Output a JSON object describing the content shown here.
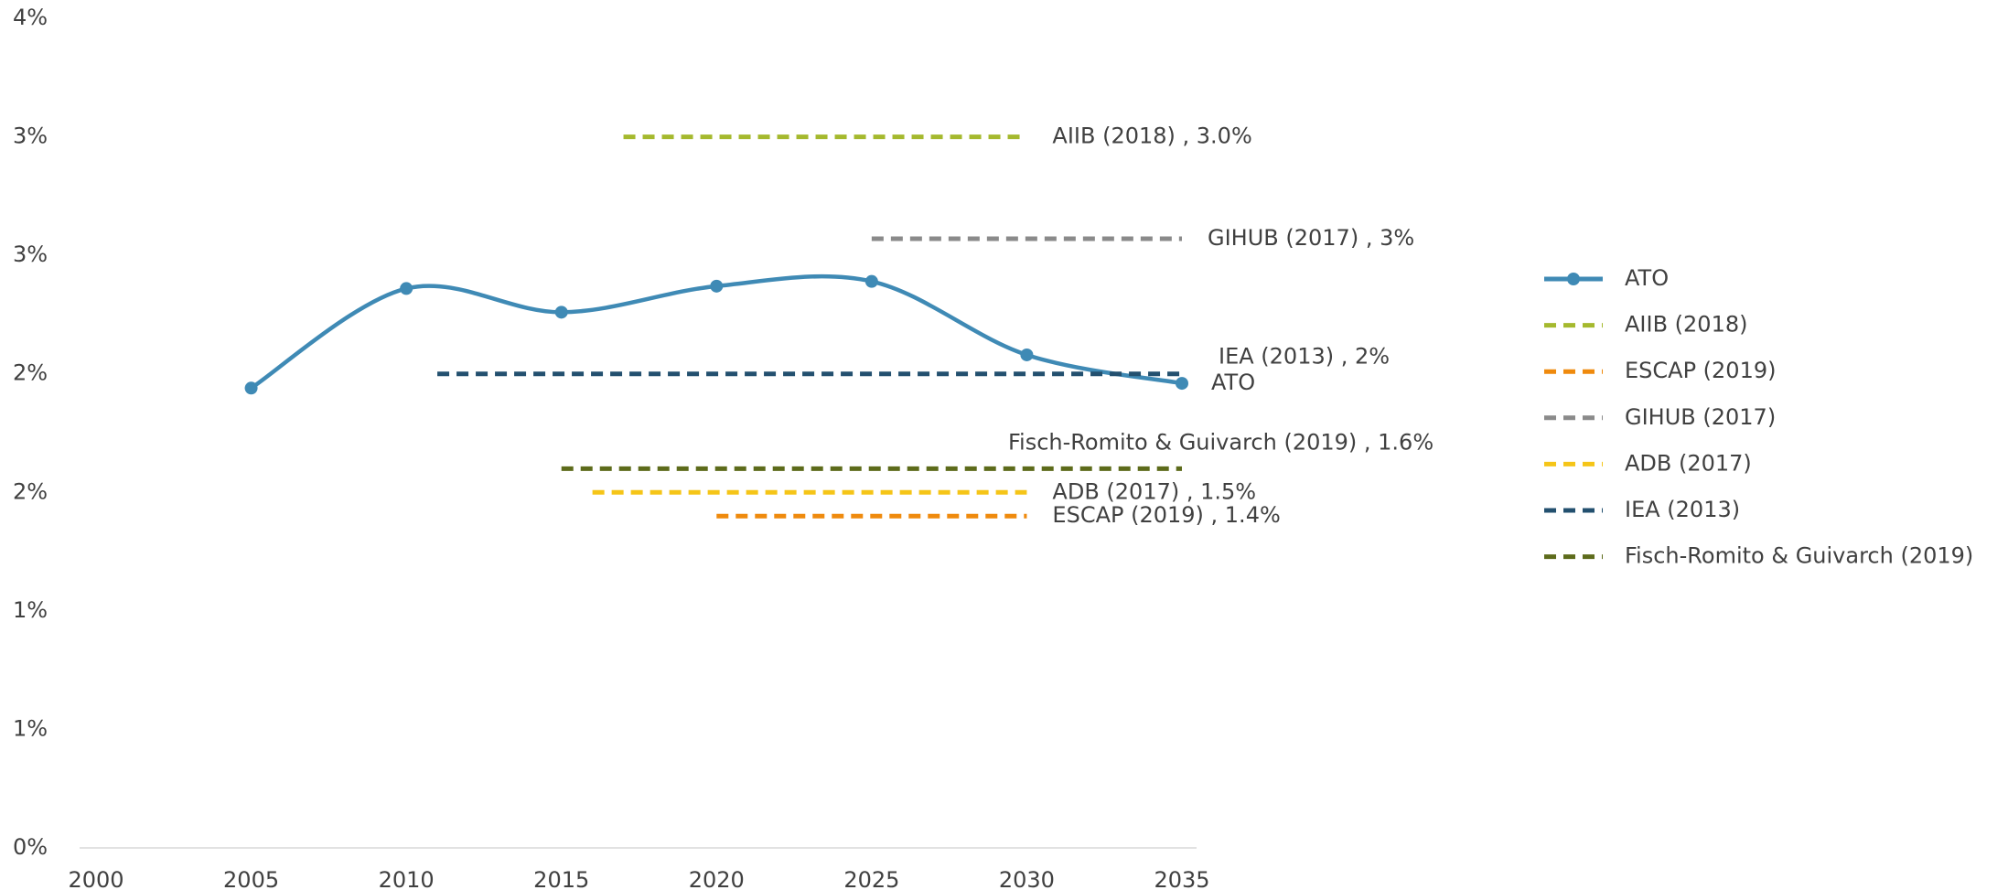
{
  "chart_data": {
    "type": "line",
    "xlim": [
      2000,
      2035
    ],
    "xticks": [
      2000,
      2005,
      2010,
      2015,
      2020,
      2025,
      2030,
      2035
    ],
    "ylim": [
      0,
      3.5
    ],
    "yticks": [
      {
        "value": 0,
        "label": "0%"
      },
      {
        "value": 0.5,
        "label": "1%"
      },
      {
        "value": 1,
        "label": "1%"
      },
      {
        "value": 1.5,
        "label": "2%"
      },
      {
        "value": 2,
        "label": "2%"
      },
      {
        "value": 2.5,
        "label": "3%"
      },
      {
        "value": 3,
        "label": "3%"
      },
      {
        "value": 3.5,
        "label": "4%"
      }
    ],
    "grid": false,
    "legend": "right",
    "series": [
      {
        "name": "ATO",
        "color": "#3f8ab5",
        "style": "smooth-marker",
        "x": [
          2005,
          2010,
          2015,
          2020,
          2025,
          2030,
          2035
        ],
        "values": [
          1.94,
          2.36,
          2.26,
          2.37,
          2.39,
          2.08,
          1.96
        ],
        "data_label": "ATO"
      },
      {
        "name": "AIIB (2018)",
        "color": "#a5b92e",
        "style": "dashed",
        "x": [
          2017,
          2030
        ],
        "values": [
          3.0,
          3.0
        ],
        "data_label": "AIIB (2018) , 3.0%"
      },
      {
        "name": "ESCAP (2019)",
        "color": "#ef8a0d",
        "style": "dashed",
        "x": [
          2020,
          2030
        ],
        "values": [
          1.4,
          1.4
        ],
        "data_label": "ESCAP (2019) , 1.4%"
      },
      {
        "name": "GIHUB (2017)",
        "color": "#8a8a8a",
        "style": "dashed",
        "x": [
          2025,
          2035
        ],
        "values": [
          2.57,
          2.57
        ],
        "data_label": "GIHUB (2017) , 3%"
      },
      {
        "name": "ADB (2017)",
        "color": "#f5c518",
        "style": "dashed",
        "x": [
          2016,
          2030
        ],
        "values": [
          1.5,
          1.5
        ],
        "data_label": "ADB (2017) , 1.5%"
      },
      {
        "name": "IEA (2013)",
        "color": "#23506f",
        "style": "dashed",
        "x": [
          2011,
          2035
        ],
        "values": [
          2.0,
          2.0
        ],
        "data_label": "IEA (2013) , 2%"
      },
      {
        "name": "Fisch-Romito & Guivarch (2019)",
        "color": "#5d6b1b",
        "style": "dashed",
        "x": [
          2015,
          2035
        ],
        "values": [
          1.6,
          1.6
        ],
        "data_label": "Fisch-Romito & Guivarch (2019) , 1.6%"
      }
    ]
  }
}
